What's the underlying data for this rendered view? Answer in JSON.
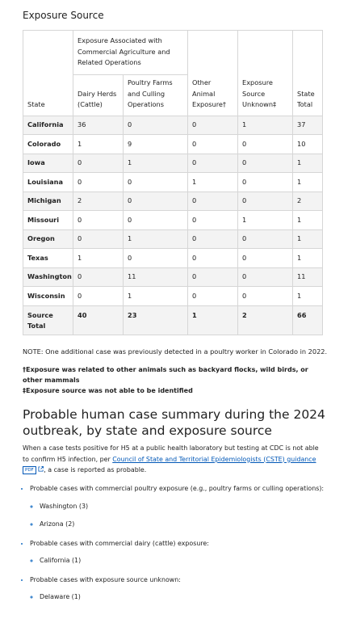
{
  "title": "Exposure Source",
  "table": {
    "group_header": "Exposure Associated with Commercial Agriculture and Related Operations",
    "headers": [
      "State",
      "Dairy Herds (Cattle)",
      "Poultry Farms and Culling Operations",
      "Other Animal Exposure†",
      "Exposure Source Unknown‡",
      "State Total"
    ],
    "rows": [
      [
        "California",
        36,
        0,
        0,
        1,
        37
      ],
      [
        "Colorado",
        1,
        9,
        0,
        0,
        10
      ],
      [
        "Iowa",
        0,
        1,
        0,
        0,
        1
      ],
      [
        "Louisiana",
        0,
        0,
        1,
        0,
        1
      ],
      [
        "Michigan",
        2,
        0,
        0,
        0,
        2
      ],
      [
        "Missouri",
        0,
        0,
        0,
        1,
        1
      ],
      [
        "Oregon",
        0,
        1,
        0,
        0,
        1
      ],
      [
        "Texas",
        1,
        0,
        0,
        0,
        1
      ],
      [
        "Washington",
        0,
        11,
        0,
        0,
        11
      ],
      [
        "Wisconsin",
        0,
        1,
        0,
        0,
        1
      ],
      [
        "Source Total",
        40,
        23,
        1,
        2,
        66
      ]
    ]
  },
  "note": "NOTE: One additional case was previously detected in a poultry worker in Colorado in 2022.",
  "footnotes": [
    "†Exposure was related to other animals such as backyard flocks, wild birds, or other mammals",
    "‡Exposure source was not able to be identified"
  ],
  "section": {
    "heading": "Probable human case summary during the 2024 outbreak, by state and exposure source",
    "paragraph": {
      "before": "When a case tests positive for H5 at a public health laboratory but testing at CDC is not able to confirm H5 infection, per ",
      "link": "Council of State and Territorial Epidemiologists (CSTE) guidance",
      "badge": "PDF",
      "after": ", a case is reported as probable."
    },
    "items": [
      {
        "text": "Probable cases with commercial poultry exposure (e.g., poultry farms or culling operations):",
        "sub": [
          "Washington (3)",
          "Arizona (2)"
        ]
      },
      {
        "text": "Probable cases with commercial dairy (cattle) exposure:",
        "sub": [
          "California (1)"
        ]
      },
      {
        "text": "Probable cases with exposure source unknown:",
        "sub": [
          "Delaware (1)"
        ]
      }
    ]
  }
}
